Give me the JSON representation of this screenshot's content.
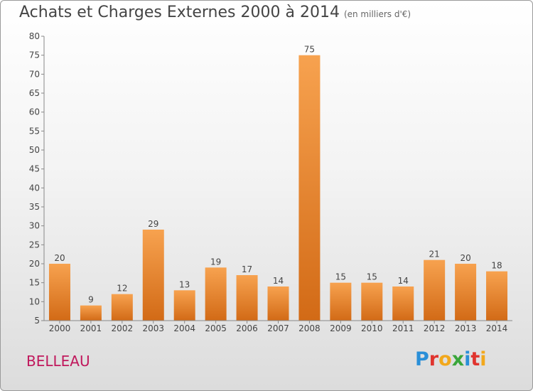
{
  "chart_data": {
    "type": "bar",
    "title": "Achats et Charges Externes 2000 à 2014",
    "subtitle": "(en milliers d'€)",
    "categories": [
      "2000",
      "2001",
      "2002",
      "2003",
      "2004",
      "2005",
      "2006",
      "2007",
      "2008",
      "2009",
      "2010",
      "2011",
      "2012",
      "2013",
      "2014"
    ],
    "values": [
      20,
      9,
      12,
      29,
      13,
      19,
      17,
      14,
      75,
      15,
      15,
      14,
      21,
      20,
      18
    ],
    "data_labels": [
      "20",
      "9",
      "12",
      "29",
      "13",
      "19",
      "17",
      "14",
      "75",
      "15",
      "15",
      "14",
      "21",
      "20",
      "18"
    ],
    "y_ticks": [
      "5",
      "10",
      "15",
      "20",
      "25",
      "30",
      "35",
      "40",
      "45",
      "50",
      "55",
      "60",
      "65",
      "70",
      "75",
      "80"
    ],
    "ylim": [
      5,
      80
    ],
    "grid": false,
    "legend": "none",
    "bar_color_top": "#f7a24f",
    "bar_color_bottom": "#d26a16"
  },
  "commune": "BELLEAU",
  "brand": {
    "letters": [
      "P",
      "r",
      "o",
      "x",
      "i",
      "t",
      "i"
    ],
    "colors": [
      "#2a8fd8",
      "#e0342e",
      "#f2a81c",
      "#3aa63a",
      "#2a8fd8",
      "#e0342e",
      "#f2a81c"
    ]
  }
}
